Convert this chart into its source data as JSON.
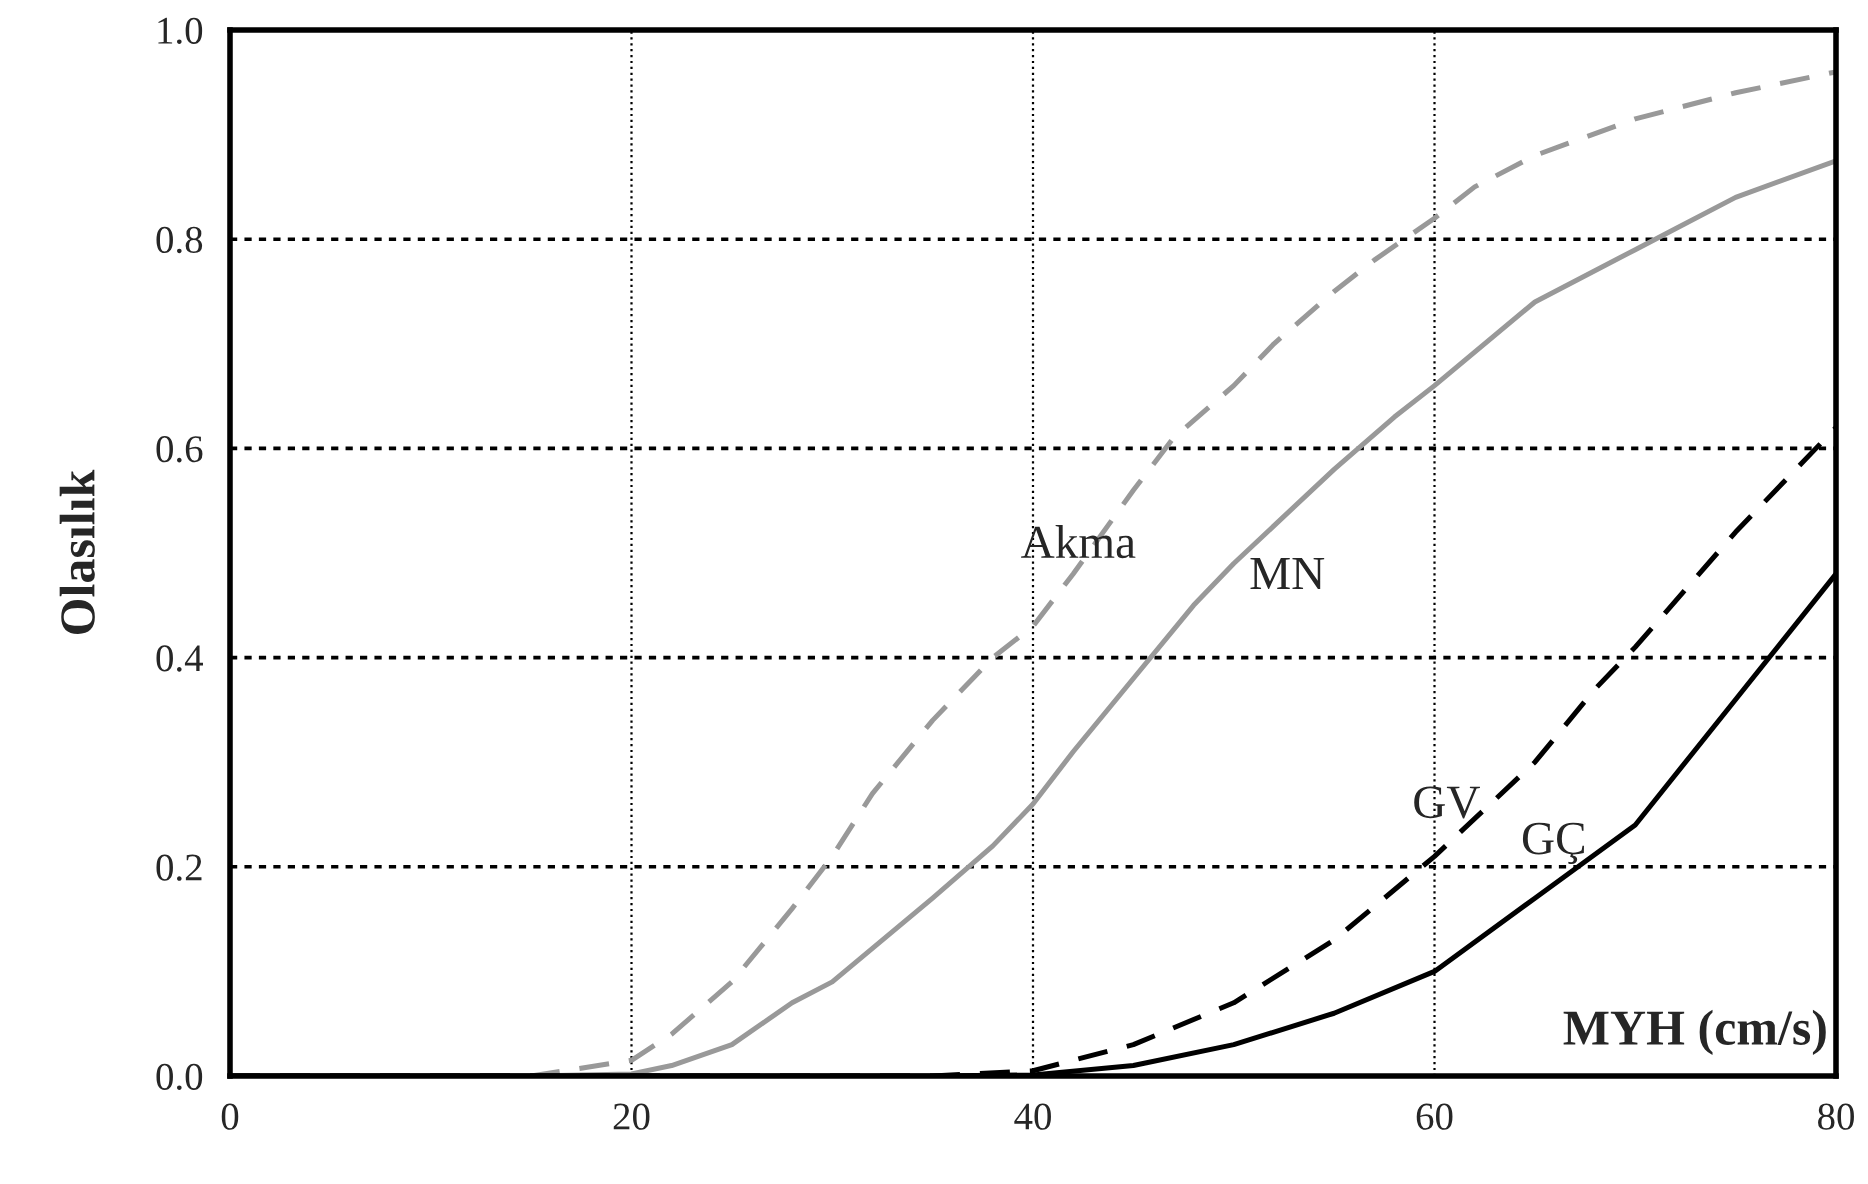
{
  "chart_data": {
    "type": "line",
    "xlabel": "MYH (cm/s)",
    "ylabel": "Olasılık",
    "xlim": [
      0,
      80
    ],
    "ylim": [
      0,
      1.0
    ],
    "xticks": [
      0,
      20,
      40,
      60,
      80
    ],
    "yticks": [
      {
        "value": 0,
        "label": "0.0"
      },
      {
        "value": 0.2,
        "label": "0.2"
      },
      {
        "value": 0.4,
        "label": "0.4"
      },
      {
        "value": 0.6,
        "label": "0.6"
      },
      {
        "value": 0.8,
        "label": "0.8"
      },
      {
        "value": 1.0,
        "label": "1.0"
      }
    ],
    "grid": true,
    "legend": false,
    "series": [
      {
        "name": "Akma",
        "color": "#999999",
        "line_style": "dashed",
        "x": [
          0,
          10,
          15,
          20,
          22,
          25,
          28,
          30,
          32,
          35,
          38,
          40,
          42,
          45,
          47,
          50,
          52,
          55,
          57,
          60,
          62,
          65,
          70,
          75,
          80
        ],
        "values": [
          0,
          0,
          0,
          0.015,
          0.04,
          0.09,
          0.16,
          0.21,
          0.27,
          0.34,
          0.4,
          0.43,
          0.48,
          0.56,
          0.61,
          0.66,
          0.7,
          0.75,
          0.78,
          0.82,
          0.85,
          0.88,
          0.915,
          0.94,
          0.96
        ]
      },
      {
        "name": "MN",
        "color": "#999999",
        "line_style": "solid",
        "x": [
          0,
          10,
          15,
          20,
          22,
          25,
          28,
          30,
          35,
          38,
          40,
          42,
          45,
          48,
          50,
          55,
          58,
          60,
          65,
          70,
          72,
          75,
          80
        ],
        "values": [
          0,
          0,
          0,
          0.002,
          0.01,
          0.03,
          0.07,
          0.09,
          0.17,
          0.22,
          0.26,
          0.31,
          0.38,
          0.45,
          0.49,
          0.58,
          0.63,
          0.66,
          0.74,
          0.79,
          0.81,
          0.84,
          0.875
        ]
      },
      {
        "name": "GV",
        "color": "#000000",
        "line_style": "dashed",
        "x": [
          0,
          20,
          35,
          40,
          45,
          50,
          55,
          60,
          65,
          68,
          70,
          75,
          80
        ],
        "values": [
          0,
          0,
          0,
          0.005,
          0.03,
          0.07,
          0.13,
          0.21,
          0.3,
          0.37,
          0.41,
          0.52,
          0.62
        ]
      },
      {
        "name": "GÇ",
        "color": "#000000",
        "line_style": "solid",
        "x": [
          0,
          20,
          35,
          40,
          45,
          50,
          55,
          60,
          65,
          70,
          75,
          80
        ],
        "values": [
          0,
          0,
          0,
          0.001,
          0.01,
          0.03,
          0.06,
          0.1,
          0.17,
          0.24,
          0.36,
          0.48
        ]
      }
    ]
  }
}
